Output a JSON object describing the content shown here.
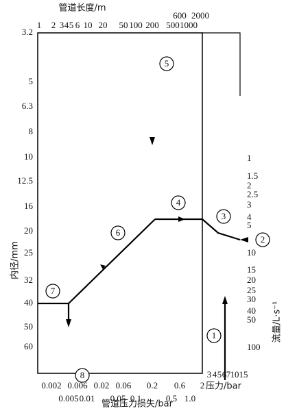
{
  "top_axis": {
    "title": "管道长度/m",
    "labels": [
      "1",
      "2",
      "3",
      "4",
      "5",
      "6",
      "10",
      "20",
      "50",
      "100",
      "200",
      "500",
      "1000",
      "600",
      "2000"
    ]
  },
  "left_axis": {
    "title": "内径/mm",
    "labels": [
      "3.2",
      "5",
      "6.3",
      "8",
      "10",
      "12.5",
      "16",
      "20",
      "25",
      "32",
      "40",
      "50",
      "60"
    ]
  },
  "bottom_axis": {
    "title": "管道压力损失/bar",
    "labels_upper": [
      "0.002",
      "0.006",
      "0.02",
      "0.06",
      "0.2",
      "0.6",
      "2"
    ],
    "labels_lower": [
      "0.005",
      "0.01",
      "0.05",
      "0.1",
      "0.5",
      "1.0"
    ]
  },
  "pressure_axis": {
    "title": "压力/bar",
    "labels": [
      "3",
      "4",
      "5",
      "6",
      "7",
      "10",
      "15"
    ]
  },
  "flow_axis": {
    "title": "流量/L·s⁻¹",
    "labels": [
      "1",
      "1.5",
      "2",
      "2.5",
      "3",
      "4",
      "5",
      "10",
      "15",
      "20",
      "25",
      "30",
      "40",
      "50",
      "100"
    ]
  },
  "markers": [
    "1",
    "2",
    "3",
    "4",
    "5",
    "6",
    "7",
    "8"
  ]
}
